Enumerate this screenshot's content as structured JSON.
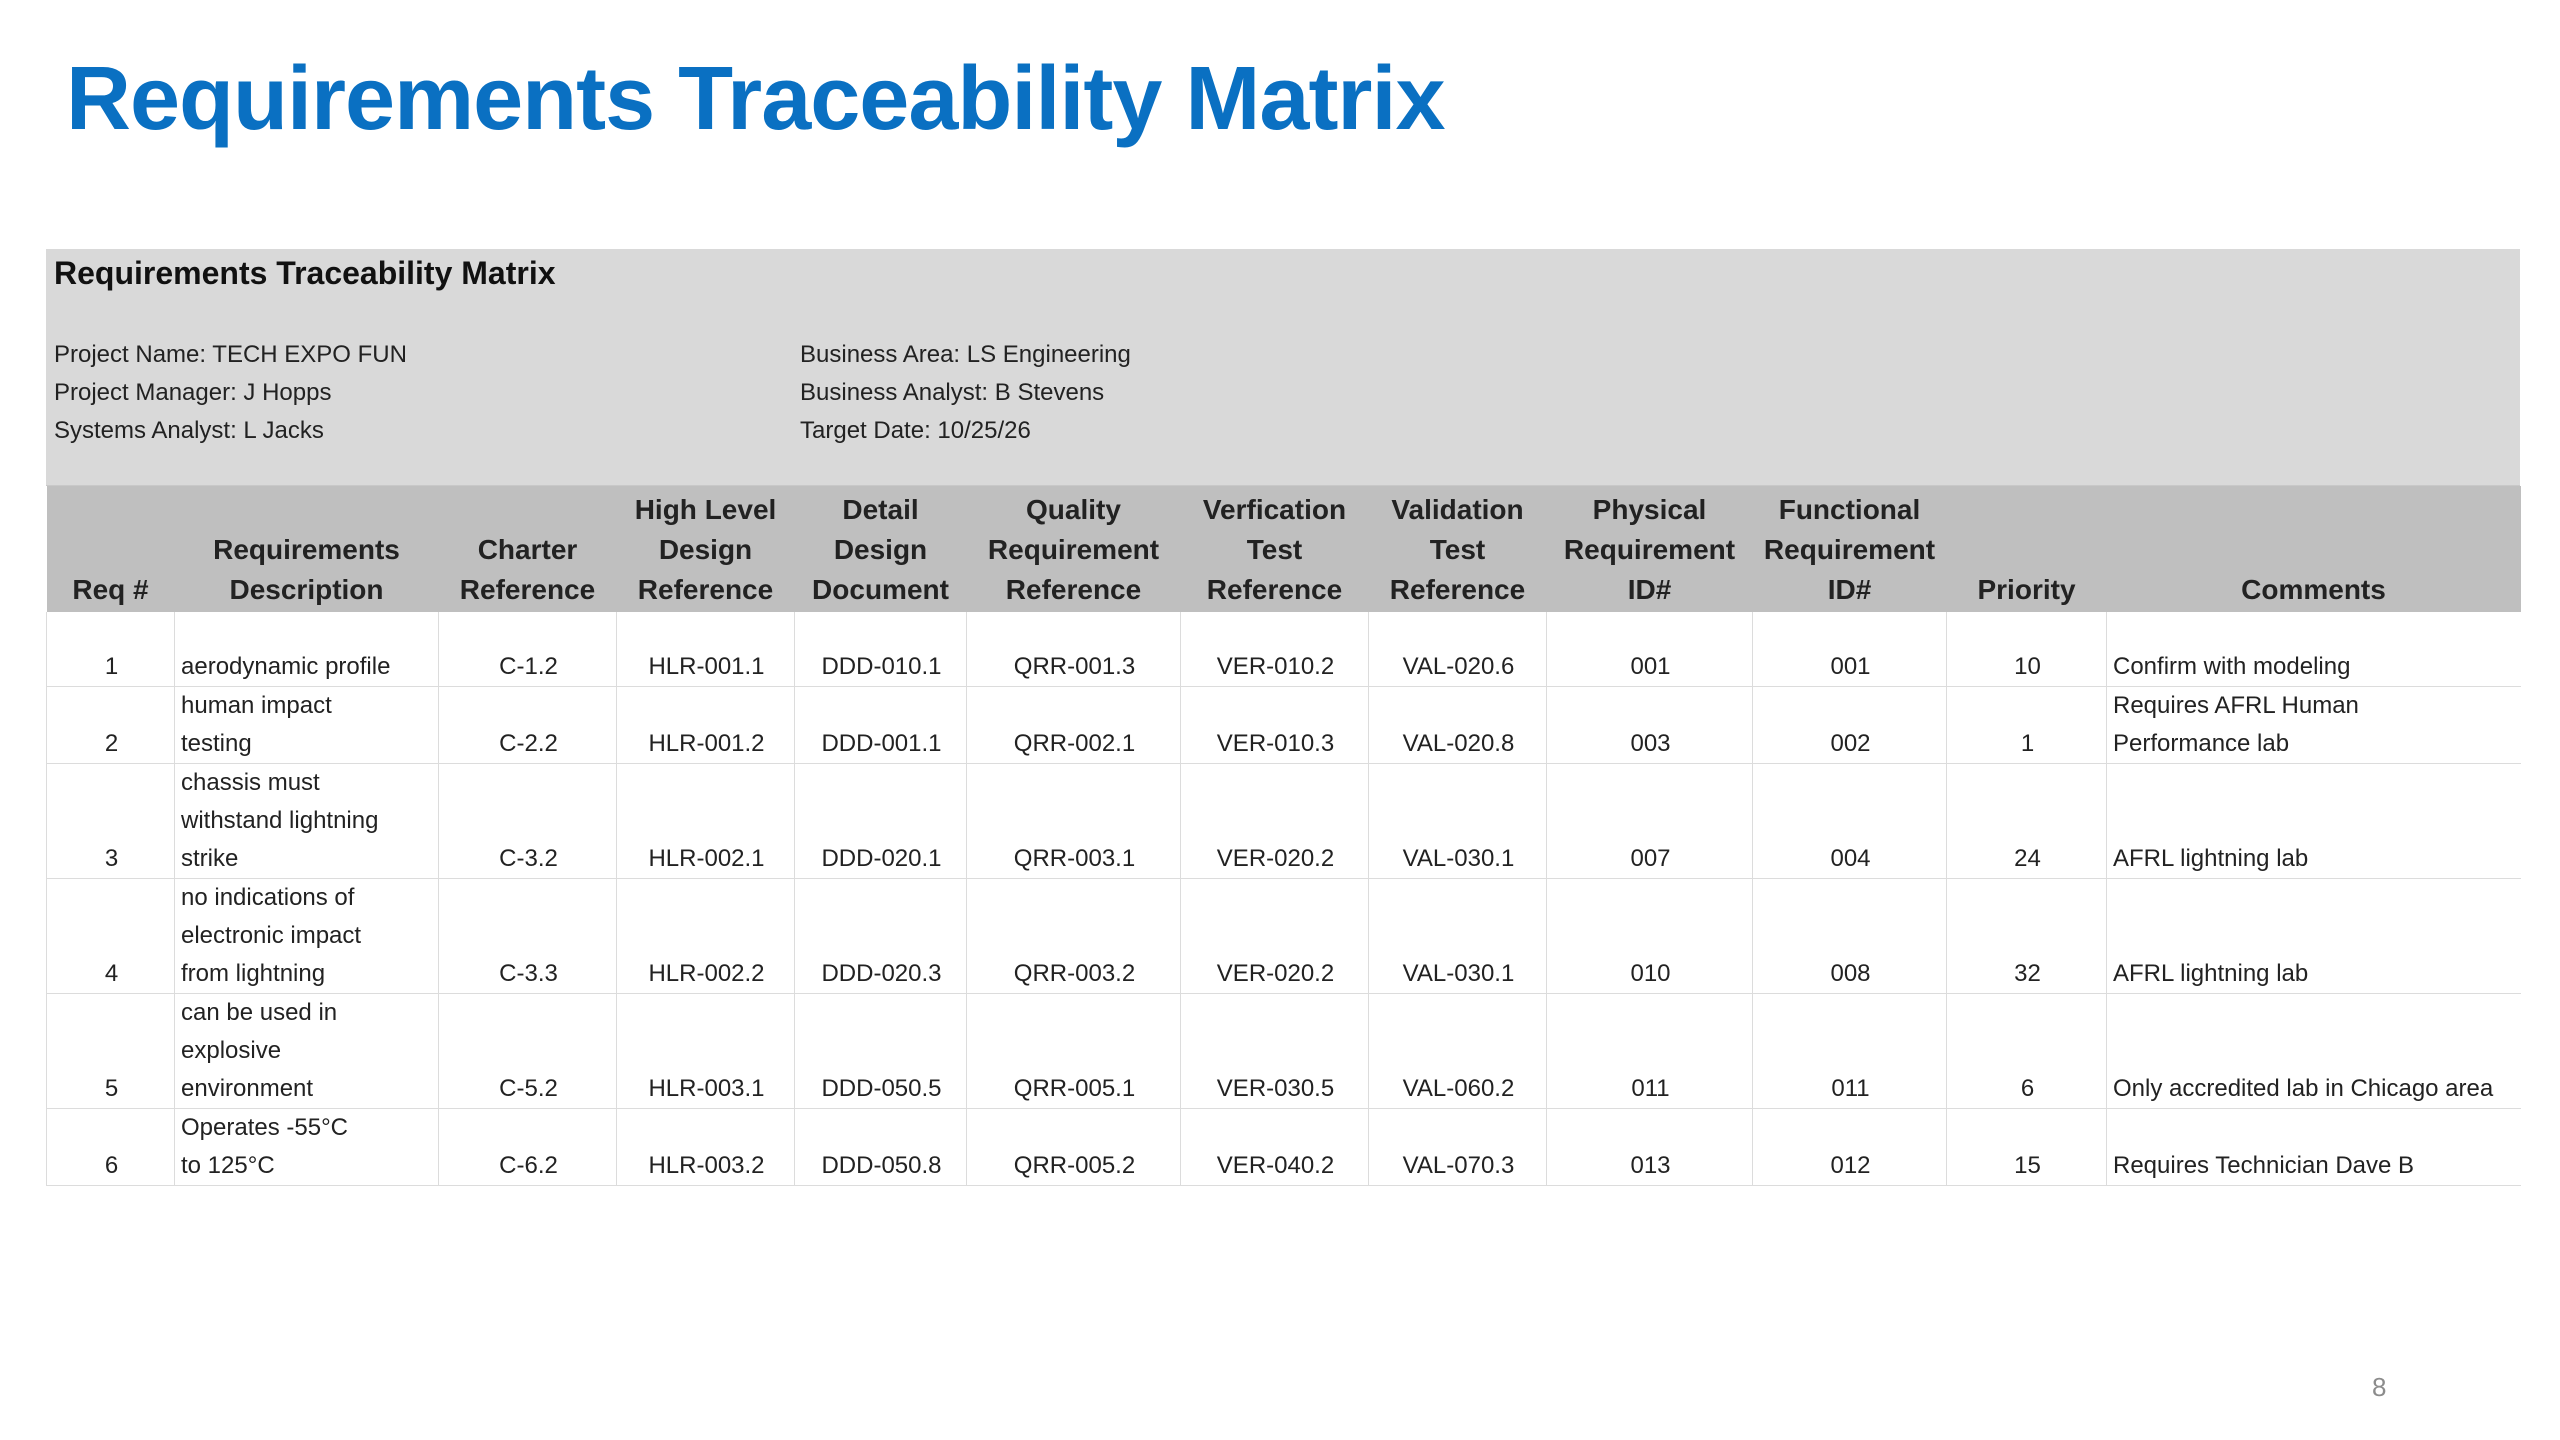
{
  "slide": {
    "title": "Requirements Traceability Matrix",
    "page_number": "8"
  },
  "matrix": {
    "title": "Requirements Traceability Matrix",
    "project_name": "Project Name:  TECH EXPO FUN",
    "project_manager": "Project Manager:  J Hopps",
    "systems_analyst": "Systems Analyst:  L Jacks",
    "business_area": "Business Area:  LS Engineering",
    "business_analyst": "Business Analyst:  B Stevens",
    "target_date": "Target Date:  10/25/26",
    "columns": [
      [
        "Req #"
      ],
      [
        "Requirements",
        "Description"
      ],
      [
        "Charter",
        "Reference"
      ],
      [
        "High Level",
        "Design",
        "Reference"
      ],
      [
        "Detail",
        "Design",
        "Document"
      ],
      [
        "Quality",
        "Requirement",
        "Reference"
      ],
      [
        "Verfication",
        "Test",
        "Reference"
      ],
      [
        "Validation",
        "Test",
        "Reference"
      ],
      [
        "Physical",
        "Requirement",
        "ID#"
      ],
      [
        "Functional",
        "Requirement",
        "ID#"
      ],
      [
        "Priority"
      ],
      [
        "Comments"
      ]
    ],
    "rows": [
      [
        "1",
        "aerodynamic profile",
        "C-1.2",
        "HLR-001.1",
        "DDD-010.1",
        "QRR-001.3",
        "VER-010.2",
        "VAL-020.6",
        "001",
        "001",
        "10",
        "Confirm with modeling"
      ],
      [
        "2",
        "human impact testing",
        "C-2.2",
        "HLR-001.2",
        "DDD-001.1",
        "QRR-002.1",
        "VER-010.3",
        "VAL-020.8",
        "003",
        "002",
        "1",
        "Requires AFRL Human Performance lab"
      ],
      [
        "3",
        "chassis must withstand lightning strike",
        "C-3.2",
        "HLR-002.1",
        "DDD-020.1",
        "QRR-003.1",
        "VER-020.2",
        "VAL-030.1",
        "007",
        "004",
        "24",
        "AFRL lightning lab"
      ],
      [
        "4",
        "no indications of electronic impact from lightning",
        "C-3.3",
        "HLR-002.2",
        "DDD-020.3",
        "QRR-003.2",
        "VER-020.2",
        "VAL-030.1",
        "010",
        "008",
        "32",
        "AFRL lightning lab"
      ],
      [
        "5",
        "can be used in explosive environment",
        "C-5.2",
        "HLR-003.1",
        "DDD-050.5",
        "QRR-005.1",
        "VER-030.5",
        "VAL-060.2",
        "011",
        "011",
        "6",
        "Only accredited lab in Chicago area"
      ],
      [
        "6",
        "Operates -55°C to 125°C",
        "C-6.2",
        "HLR-003.2",
        "DDD-050.8",
        "QRR-005.2",
        "VER-040.2",
        "VAL-070.3",
        "013",
        "012",
        "15",
        "Requires Technician Dave B"
      ]
    ]
  }
}
